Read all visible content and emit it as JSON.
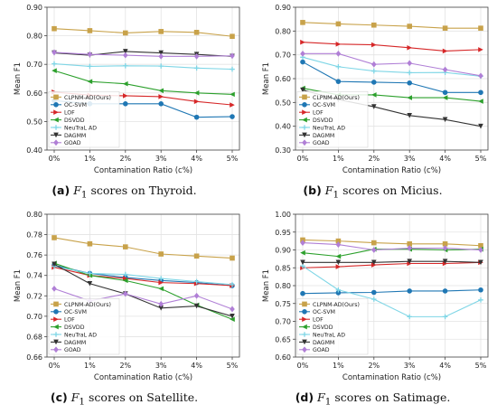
{
  "figure": {
    "captions": [
      {
        "label": "(a)",
        "prefix": "F",
        "sub": "1",
        "text": "scores on Thyroid."
      },
      {
        "label": "(b)",
        "prefix": "F",
        "sub": "1",
        "text": "scores on Micius."
      },
      {
        "label": "(c)",
        "prefix": "F",
        "sub": "1",
        "text": "scores on Satellite."
      },
      {
        "label": "(d)",
        "prefix": "F",
        "sub": "1",
        "text": "scores on Satimage."
      }
    ]
  },
  "chart_data": [
    {
      "type": "line",
      "title": "",
      "xlabel": "Contamination Ratio (c%)",
      "ylabel": "Mean F1",
      "categories": [
        "0%",
        "1%",
        "2%",
        "3%",
        "4%",
        "5%"
      ],
      "ylim": [
        0.4,
        0.9
      ],
      "yticks": [
        "0.40",
        "0.50",
        "0.60",
        "0.70",
        "0.80",
        "0.90"
      ],
      "grid": true,
      "legend_position": "bottom-left",
      "series": [
        {
          "name": "CLPNM-AD(Ours)",
          "color": "#c8a24a",
          "marker": "square",
          "values": [
            0.825,
            0.818,
            0.81,
            0.815,
            0.812,
            0.798
          ]
        },
        {
          "name": "OC-SVM",
          "color": "#1f77b4",
          "marker": "circle",
          "values": [
            0.573,
            0.562,
            0.562,
            0.562,
            0.515,
            0.517
          ]
        },
        {
          "name": "LOF",
          "color": "#d62728",
          "marker": "triangle-right",
          "values": [
            0.603,
            0.592,
            0.59,
            0.587,
            0.57,
            0.558
          ]
        },
        {
          "name": "DSVDD",
          "color": "#2ca02c",
          "marker": "triangle-left",
          "values": [
            0.678,
            0.64,
            0.632,
            0.608,
            0.6,
            0.595
          ]
        },
        {
          "name": "NeuTraL AD",
          "color": "#7fd6e6",
          "marker": "plus",
          "values": [
            0.702,
            0.693,
            0.695,
            0.694,
            0.687,
            0.683
          ]
        },
        {
          "name": "DAGMM",
          "color": "#333333",
          "marker": "triangle-down",
          "values": [
            0.74,
            0.732,
            0.745,
            0.74,
            0.735,
            0.728
          ]
        },
        {
          "name": "GOAD",
          "color": "#b07fd6",
          "marker": "diamond",
          "values": [
            0.742,
            0.735,
            0.732,
            0.728,
            0.728,
            0.73
          ]
        }
      ]
    },
    {
      "type": "line",
      "title": "",
      "xlabel": "Contamination Ratio (c%)",
      "ylabel": "Mean F1",
      "categories": [
        "0%",
        "1%",
        "2%",
        "3%",
        "4%",
        "5%"
      ],
      "ylim": [
        0.3,
        0.9
      ],
      "yticks": [
        "0.30",
        "0.40",
        "0.50",
        "0.60",
        "0.70",
        "0.80",
        "0.90"
      ],
      "grid": true,
      "legend_position": "bottom-left",
      "series": [
        {
          "name": "CLPNM-AD(Ours)",
          "color": "#c8a24a",
          "marker": "square",
          "values": [
            0.836,
            0.83,
            0.825,
            0.82,
            0.812,
            0.812
          ]
        },
        {
          "name": "OC-SVM",
          "color": "#1f77b4",
          "marker": "circle",
          "values": [
            0.67,
            0.588,
            0.585,
            0.582,
            0.542,
            0.542
          ]
        },
        {
          "name": "LOF",
          "color": "#d62728",
          "marker": "triangle-right",
          "values": [
            0.753,
            0.745,
            0.742,
            0.73,
            0.716,
            0.722
          ]
        },
        {
          "name": "DSVDD",
          "color": "#2ca02c",
          "marker": "triangle-left",
          "values": [
            0.56,
            0.532,
            0.532,
            0.52,
            0.52,
            0.505
          ]
        },
        {
          "name": "NeuTraL AD",
          "color": "#7fd6e6",
          "marker": "plus",
          "values": [
            0.69,
            0.65,
            0.632,
            0.625,
            0.626,
            0.61
          ]
        },
        {
          "name": "DAGMM",
          "color": "#333333",
          "marker": "triangle-down",
          "values": [
            0.552,
            0.512,
            0.482,
            0.445,
            0.428,
            0.4
          ]
        },
        {
          "name": "GOAD",
          "color": "#b07fd6",
          "marker": "diamond",
          "values": [
            0.705,
            0.705,
            0.66,
            0.665,
            0.638,
            0.612
          ]
        }
      ]
    },
    {
      "type": "line",
      "title": "",
      "xlabel": "Contamination Ratio (c%)",
      "ylabel": "Mean F1",
      "categories": [
        "0%",
        "1%",
        "2%",
        "3%",
        "4%",
        "5%"
      ],
      "ylim": [
        0.66,
        0.8
      ],
      "yticks": [
        "0.66",
        "0.68",
        "0.70",
        "0.72",
        "0.74",
        "0.76",
        "0.78",
        "0.80"
      ],
      "grid": true,
      "legend_position": "bottom-left",
      "series": [
        {
          "name": "CLPNM-AD(Ours)",
          "color": "#c8a24a",
          "marker": "square",
          "values": [
            0.777,
            0.771,
            0.768,
            0.761,
            0.759,
            0.757
          ]
        },
        {
          "name": "OC-SVM",
          "color": "#1f77b4",
          "marker": "circle",
          "values": [
            0.75,
            0.742,
            0.738,
            0.735,
            0.733,
            0.73
          ]
        },
        {
          "name": "LOF",
          "color": "#d62728",
          "marker": "triangle-right",
          "values": [
            0.748,
            0.74,
            0.737,
            0.733,
            0.732,
            0.73
          ]
        },
        {
          "name": "DSVDD",
          "color": "#2ca02c",
          "marker": "triangle-left",
          "values": [
            0.752,
            0.74,
            0.735,
            0.727,
            0.711,
            0.697
          ]
        },
        {
          "name": "NeuTraL AD",
          "color": "#7fd6e6",
          "marker": "plus",
          "values": [
            0.749,
            0.742,
            0.741,
            0.737,
            0.734,
            0.731
          ]
        },
        {
          "name": "DAGMM",
          "color": "#333333",
          "marker": "triangle-down",
          "values": [
            0.751,
            0.732,
            0.722,
            0.708,
            0.71,
            0.7
          ]
        },
        {
          "name": "GOAD",
          "color": "#b07fd6",
          "marker": "diamond",
          "values": [
            0.727,
            0.715,
            0.722,
            0.712,
            0.72,
            0.707
          ]
        }
      ]
    },
    {
      "type": "line",
      "title": "",
      "xlabel": "Contamination Ratio (c%)",
      "ylabel": "Mean F1",
      "categories": [
        "0%",
        "1%",
        "2%",
        "3%",
        "4%",
        "5%"
      ],
      "ylim": [
        0.6,
        1.0
      ],
      "yticks": [
        "0.60",
        "0.65",
        "0.70",
        "0.75",
        "0.80",
        "0.85",
        "0.90",
        "0.95",
        "1.00"
      ],
      "grid": true,
      "legend_position": "bottom-left",
      "series": [
        {
          "name": "CLPNM-AD(Ours)",
          "color": "#c8a24a",
          "marker": "square",
          "values": [
            0.928,
            0.925,
            0.92,
            0.917,
            0.917,
            0.912
          ]
        },
        {
          "name": "OC-SVM",
          "color": "#1f77b4",
          "marker": "circle",
          "values": [
            0.778,
            0.78,
            0.781,
            0.785,
            0.785,
            0.788
          ]
        },
        {
          "name": "LOF",
          "color": "#d62728",
          "marker": "triangle-right",
          "values": [
            0.85,
            0.853,
            0.858,
            0.862,
            0.862,
            0.865
          ]
        },
        {
          "name": "DSVDD",
          "color": "#2ca02c",
          "marker": "triangle-left",
          "values": [
            0.892,
            0.882,
            0.902,
            0.902,
            0.9,
            0.902
          ]
        },
        {
          "name": "NeuTraL AD",
          "color": "#7fd6e6",
          "marker": "plus",
          "values": [
            0.855,
            0.788,
            0.762,
            0.713,
            0.713,
            0.76
          ]
        },
        {
          "name": "DAGMM",
          "color": "#333333",
          "marker": "triangle-down",
          "values": [
            0.865,
            0.865,
            0.865,
            0.868,
            0.868,
            0.865
          ]
        },
        {
          "name": "GOAD",
          "color": "#b07fd6",
          "marker": "diamond",
          "values": [
            0.92,
            0.915,
            0.9,
            0.905,
            0.905,
            0.9
          ]
        }
      ]
    }
  ]
}
